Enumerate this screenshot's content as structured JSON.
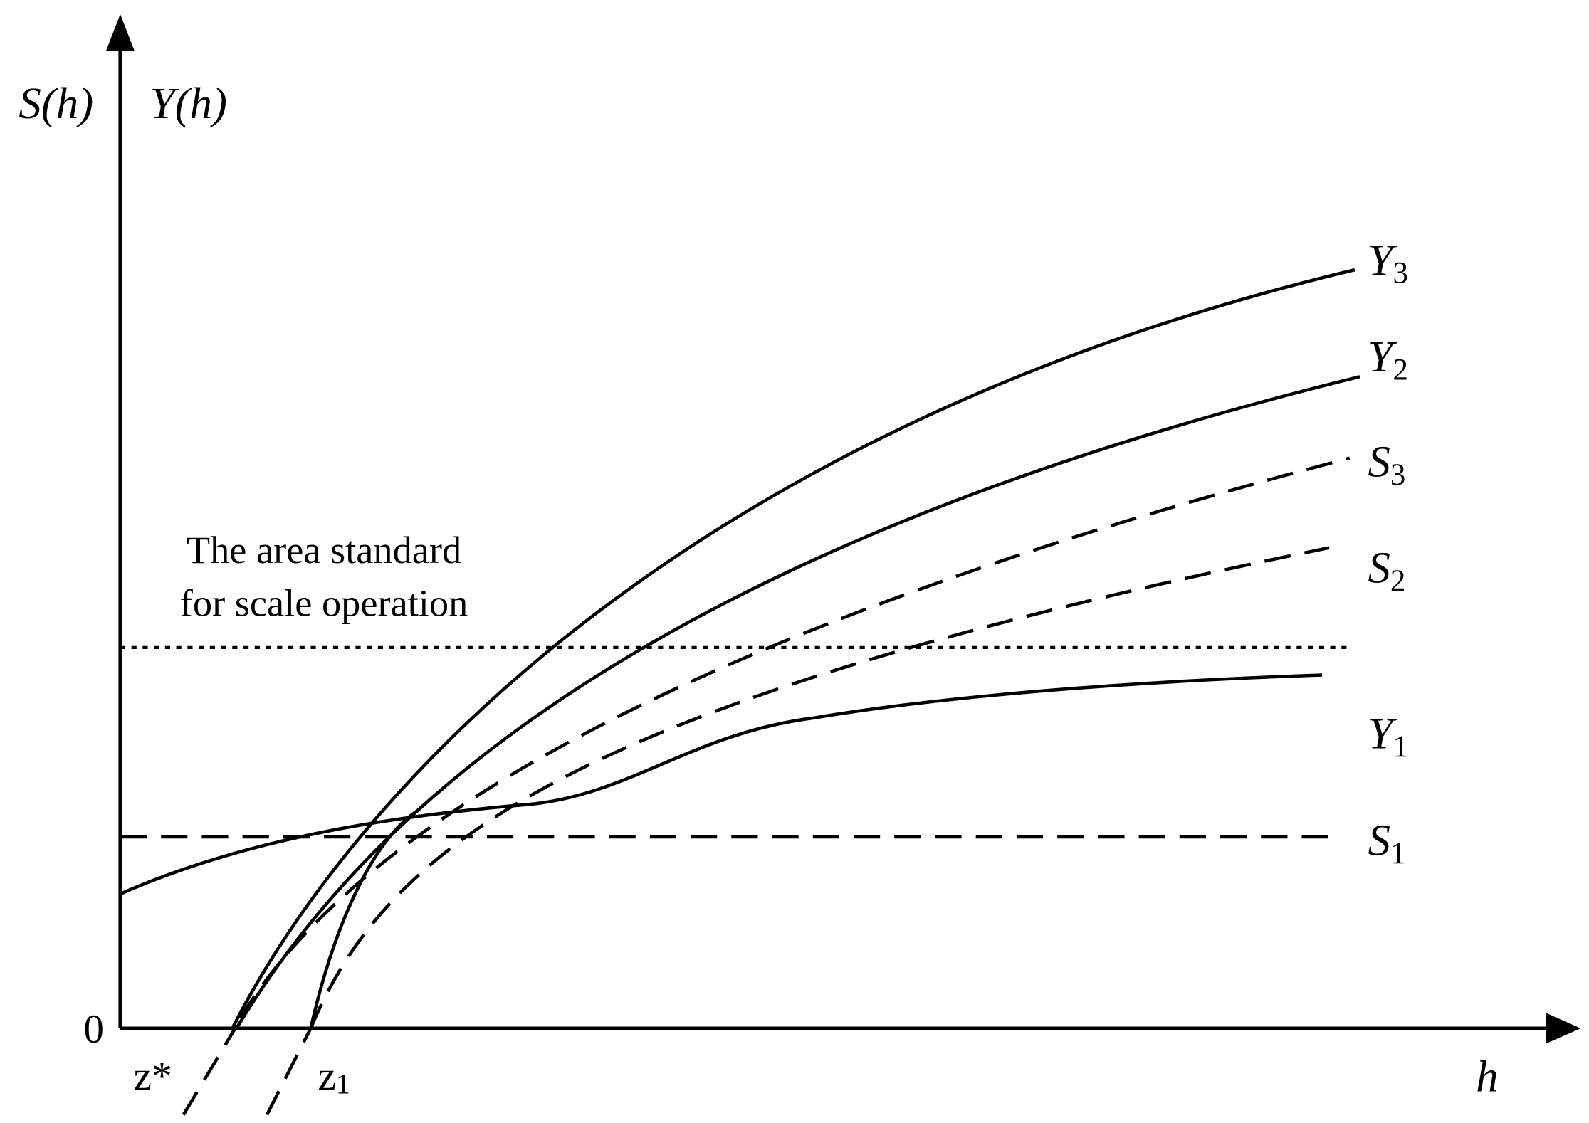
{
  "axes": {
    "y_label_left": "S(h)",
    "y_label_right": "Y(h)",
    "x_label": "h",
    "origin": "0"
  },
  "points": {
    "z_star": "z*",
    "z1": {
      "letter": "z",
      "sub": "1"
    }
  },
  "annotation": {
    "line1": "The area standard",
    "line2": "for scale operation"
  },
  "curves": [
    {
      "letter": "Y",
      "sub": "3"
    },
    {
      "letter": "Y",
      "sub": "2"
    },
    {
      "letter": "S",
      "sub": "3"
    },
    {
      "letter": "S",
      "sub": "2"
    },
    {
      "letter": "Y",
      "sub": "1"
    },
    {
      "letter": "S",
      "sub": "1"
    }
  ]
}
